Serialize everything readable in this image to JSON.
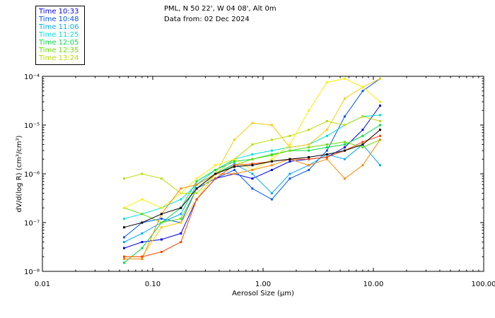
{
  "header": {
    "location": "PML, N 50 22', W 04 08', Alt 0m",
    "date": "Data from: 02 Dec 2024"
  },
  "chart_data": {
    "type": "line",
    "xscale": "log",
    "yscale": "log",
    "xlim": [
      0.01,
      100
    ],
    "ylim": [
      1e-08,
      0.0001
    ],
    "xlabel": "Aerosol Size (μm)",
    "ylabel": "dV/d(log R) (cm³/cm³)",
    "x_tick_labels": [
      "0.01",
      "0.10",
      "1.00",
      "10.00",
      "100.00"
    ],
    "y_tick_labels": [
      "10⁻⁸",
      "10⁻⁷",
      "10⁻⁶",
      "10⁻⁵",
      "10⁻⁴"
    ],
    "legend_placement": "top-left",
    "x": [
      0.055,
      0.08,
      0.12,
      0.18,
      0.25,
      0.37,
      0.55,
      0.8,
      1.2,
      1.75,
      2.6,
      3.8,
      5.5,
      8.0,
      11.5
    ],
    "series": [
      {
        "name": "Time 10:33",
        "color": "#0000ee",
        "values": [
          3e-08,
          4e-08,
          4.5e-08,
          6e-08,
          3e-07,
          8e-07,
          1e-06,
          8e-07,
          1.2e-06,
          1.8e-06,
          2e-06,
          2.2e-06,
          3.5e-06,
          8e-06,
          2.5e-05
        ]
      },
      {
        "name": "Time 10:48",
        "color": "#0055ff",
        "values": [
          5e-08,
          1e-07,
          1.2e-07,
          1e-07,
          5e-07,
          8e-07,
          1.2e-06,
          5e-07,
          3e-07,
          8e-07,
          1.2e-06,
          3e-06,
          1.5e-05,
          5e-05,
          9e-05
        ]
      },
      {
        "name": "Time 11:06",
        "color": "#00aaff",
        "values": [
          4e-08,
          6e-08,
          1e-07,
          1.5e-07,
          6e-07,
          1e-06,
          1.6e-06,
          1e-06,
          4e-07,
          1e-06,
          1.5e-06,
          2.5e-06,
          2e-06,
          4e-06,
          1.5e-06
        ]
      },
      {
        "name": "Time 11:25",
        "color": "#00dddd",
        "values": [
          1.2e-07,
          1.5e-07,
          2e-07,
          3e-07,
          6e-07,
          1.2e-06,
          2e-06,
          2.5e-06,
          3e-06,
          3.5e-06,
          4e-06,
          6e-06,
          1e-05,
          1.5e-05,
          1.6e-05
        ]
      },
      {
        "name": "Time 12:05",
        "color": "#00dd44",
        "values": [
          1.5e-08,
          3e-08,
          1e-07,
          2e-07,
          7e-07,
          1.2e-06,
          1.8e-06,
          2e-06,
          2.5e-06,
          3e-06,
          3e-06,
          3.5e-06,
          4e-06,
          6e-06,
          1e-05
        ]
      },
      {
        "name": "Time 12:35",
        "color": "#66dd00",
        "values": [
          2e-07,
          1.5e-07,
          1e-07,
          1.2e-07,
          5e-07,
          1e-06,
          1.5e-06,
          2e-06,
          2.4e-06,
          3e-06,
          3.5e-06,
          4e-06,
          4.5e-06,
          3.5e-06,
          5e-06
        ]
      },
      {
        "name": "Time 13:24",
        "color": "#bbdd00",
        "values": [
          8e-07,
          1e-06,
          8e-07,
          4e-07,
          4e-07,
          1e-06,
          2e-06,
          4e-06,
          5e-06,
          6e-06,
          8e-06,
          1.2e-05,
          1e-05,
          1.5e-05,
          1.2e-05
        ]
      },
      {
        "name": "",
        "color": "#ffcc00",
        "values": [
          2e-08,
          2e-08,
          8e-08,
          1e-07,
          3e-07,
          1e-06,
          5e-06,
          1.1e-05,
          1e-05,
          3.5e-06,
          4e-06,
          8e-06,
          3.5e-05,
          6e-05,
          9e-05
        ]
      },
      {
        "name": "",
        "color": "#ffee00",
        "values": [
          2e-07,
          3e-07,
          2e-07,
          4e-07,
          8e-07,
          1.5e-06,
          2e-06,
          1.2e-06,
          2e-06,
          4e-06,
          2e-05,
          7.5e-05,
          9e-05,
          6e-05,
          3e-05
        ]
      },
      {
        "name": "",
        "color": "#ff8800",
        "values": [
          1.8e-08,
          1.8e-08,
          1.5e-07,
          5e-07,
          6e-07,
          1e-06,
          1e-06,
          1.2e-06,
          1.5e-06,
          2e-06,
          1.5e-06,
          2e-06,
          8e-07,
          1.5e-06,
          5e-06
        ]
      },
      {
        "name": "",
        "color": "#ff4400",
        "values": [
          2e-08,
          2e-08,
          2.5e-08,
          4e-08,
          3e-07,
          8e-07,
          1.5e-06,
          1.6e-06,
          1.8e-06,
          2e-06,
          2e-06,
          2.2e-06,
          3e-06,
          4.5e-06,
          6e-06
        ]
      },
      {
        "name": "",
        "color": "#000000",
        "values": [
          8e-08,
          1e-07,
          1.5e-07,
          2e-07,
          5e-07,
          1e-06,
          1.4e-06,
          1.5e-06,
          1.8e-06,
          2e-06,
          2.2e-06,
          2.5e-06,
          3e-06,
          4e-06,
          8e-06
        ]
      }
    ]
  }
}
